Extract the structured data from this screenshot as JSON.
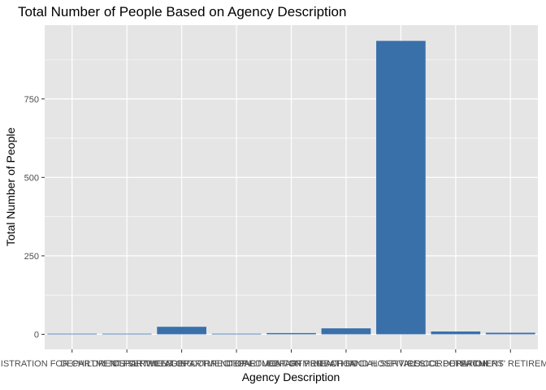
{
  "chart_data": {
    "type": "bar",
    "title": "Total Number of People Based on Agency Description",
    "xlabel": "Agency Description",
    "ylabel": "Total Number of People",
    "categories": [
      "ADMINISTRATION FOR CHILDREN'S SERVICES",
      "DEPARTMENT FOR THE AGING",
      "DEPARTMENT OF CORRECTION",
      "DEPARTMENT OF EDUCATION",
      "DEPARTMENT OF PROBATION",
      "DEPARTMENT OF SOCIAL SERVICES",
      "HEALTH AND HOSPITALS CORPORATION",
      "POLICE DEPARTMENT",
      "TEACHERS' RETIREMENT"
    ],
    "values": [
      2,
      2,
      24,
      2,
      4,
      19,
      935,
      9,
      5
    ],
    "ylim": [
      -48,
      985
    ],
    "yticks": [
      0,
      250,
      500,
      750
    ],
    "bar_color": "#3a70aa",
    "panel_color": "#e5e5e5",
    "grid": true,
    "legend": "none"
  }
}
